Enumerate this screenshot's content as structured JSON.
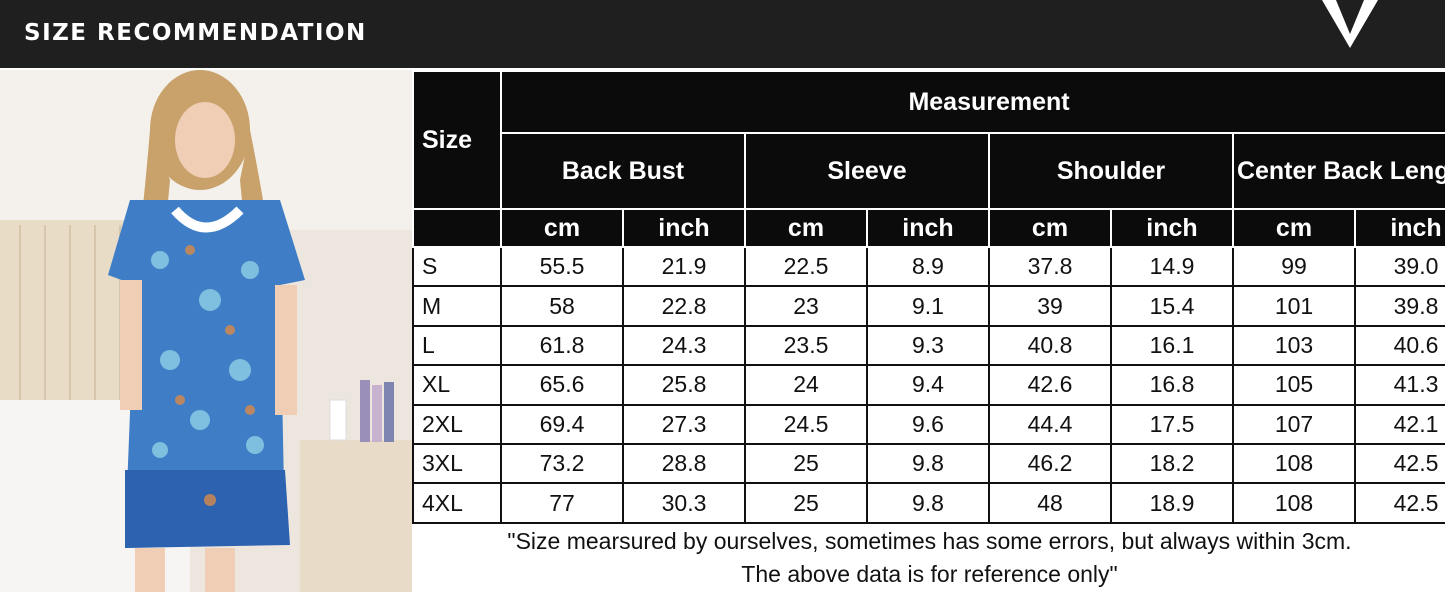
{
  "header": {
    "title": "SIZE RECOMMENDATION"
  },
  "table": {
    "size_label": "Size",
    "measurement_label": "Measurement",
    "groups": [
      "Back Bust",
      "Sleeve",
      "Shoulder",
      "Center Back Length"
    ],
    "units": [
      "cm",
      "inch"
    ],
    "rows": [
      [
        "S",
        "55.5",
        "21.9",
        "22.5",
        "8.9",
        "37.8",
        "14.9",
        "99",
        "39.0"
      ],
      [
        "M",
        "58",
        "22.8",
        "23",
        "9.1",
        "39",
        "15.4",
        "101",
        "39.8"
      ],
      [
        "L",
        "61.8",
        "24.3",
        "23.5",
        "9.3",
        "40.8",
        "16.1",
        "103",
        "40.6"
      ],
      [
        "XL",
        "65.6",
        "25.8",
        "24",
        "9.4",
        "42.6",
        "16.8",
        "105",
        "41.3"
      ],
      [
        "2XL",
        "69.4",
        "27.3",
        "24.5",
        "9.6",
        "44.4",
        "17.5",
        "107",
        "42.1"
      ],
      [
        "3XL",
        "73.2",
        "28.8",
        "25",
        "9.8",
        "46.2",
        "18.2",
        "108",
        "42.5"
      ],
      [
        "4XL",
        "77",
        "30.3",
        "25",
        "9.8",
        "48",
        "18.9",
        "108",
        "42.5"
      ]
    ],
    "note": [
      "\"Size mearsured by ourselves, sometimes has some errors, but always within 3cm.",
      "The above data is for reference only\""
    ]
  }
}
